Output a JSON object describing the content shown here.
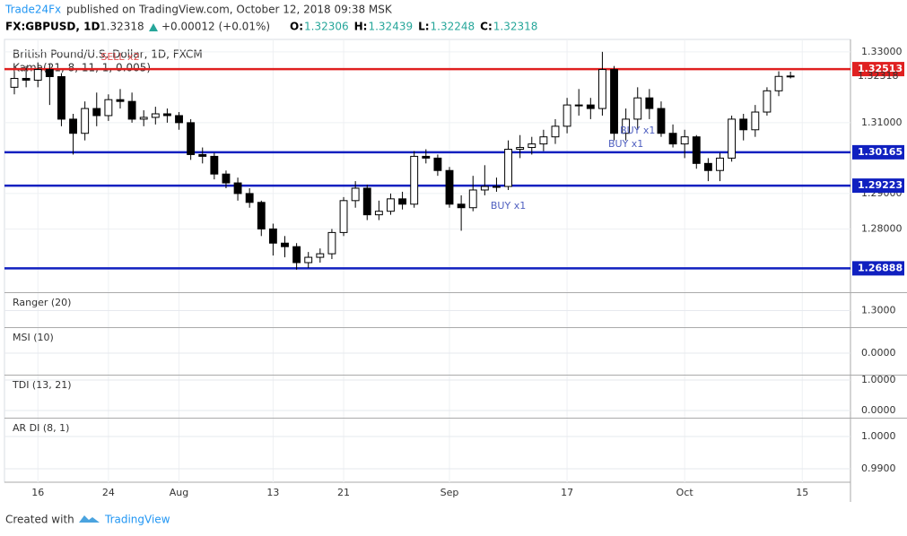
{
  "header": {
    "author": "Trade24Fx",
    "published": "published on TradingView.com, October 12, 2018 09:38 MSK",
    "symbol": "FX:GBPUSD, 1D",
    "last": "1.32318",
    "change": "+0.00012 (+0.01%)",
    "ohlc": [
      {
        "label": "O:",
        "value": "1.32306"
      },
      {
        "label": "H:",
        "value": "1.32439"
      },
      {
        "label": "L:",
        "value": "1.32248"
      },
      {
        "label": "C:",
        "value": "1.32318"
      }
    ]
  },
  "footer": {
    "created": "Created with",
    "brand": "TradingView"
  },
  "chart_data": {
    "type": "candlestick",
    "title": "British Pound/U.S. Dollar, 1D, FXCM",
    "indicator": "Kama(21, 8, 11, 1, 0.005)",
    "up_color": "#ffffff",
    "down_color": "#000000",
    "xlim": [
      -0.84,
      71.1
    ],
    "xticks": [
      {
        "value": 2,
        "label": "16"
      },
      {
        "value": 8,
        "label": "24"
      },
      {
        "value": 14,
        "label": "Aug"
      },
      {
        "value": 22,
        "label": "13"
      },
      {
        "value": 28,
        "label": "21"
      },
      {
        "value": 37,
        "label": "Sep"
      },
      {
        "value": 47,
        "label": "17"
      },
      {
        "value": 57,
        "label": "Oct"
      },
      {
        "value": 67,
        "label": "15"
      }
    ],
    "ylim": [
      1.2624,
      1.3335
    ],
    "yticks": [
      {
        "value": 1.28,
        "label": "1.28000"
      },
      {
        "value": 1.29,
        "label": "1.29000"
      },
      {
        "value": 1.31,
        "label": "1.31000"
      },
      {
        "value": 1.33,
        "label": "1.33000"
      }
    ],
    "last_price": 1.32318,
    "levels": [
      {
        "value": 1.32513,
        "color": "#e02020"
      },
      {
        "value": 1.30165,
        "color": "#1020c0"
      },
      {
        "value": 1.29223,
        "color": "#1020c0"
      },
      {
        "value": 1.26888,
        "color": "#1020c0"
      }
    ],
    "annotations": [
      {
        "text": "SELL x2",
        "x": 9,
        "y": 1.3285,
        "color": "#e05050"
      },
      {
        "text": "BUY x1",
        "x": 42,
        "y": 1.2865,
        "color": "#5060c0"
      },
      {
        "text": "BUY x1",
        "x": 53,
        "y": 1.3077,
        "color": "#5060c0"
      },
      {
        "text": "BUY x1",
        "x": 52,
        "y": 1.3039,
        "color": "#5060c0"
      }
    ],
    "open": [
      1.32,
      1.3225,
      1.322,
      1.325,
      1.323,
      1.311,
      1.307,
      1.314,
      1.312,
      1.3165,
      1.316,
      1.311,
      1.3115,
      1.3125,
      1.312,
      1.31,
      1.301,
      1.3005,
      1.2955,
      1.293,
      1.29,
      1.2875,
      1.28,
      1.276,
      1.275,
      1.2705,
      1.272,
      1.273,
      1.279,
      1.288,
      1.2915,
      1.284,
      1.285,
      1.2885,
      1.287,
      1.3005,
      1.3,
      1.2965,
      1.287,
      1.286,
      1.291,
      1.292,
      1.292,
      1.3025,
      1.303,
      1.304,
      1.306,
      1.309,
      1.315,
      1.315,
      1.314,
      1.325,
      1.307,
      1.311,
      1.317,
      1.314,
      1.307,
      1.304,
      1.306,
      1.2985,
      1.2965,
      1.3,
      1.311,
      1.308,
      1.313,
      1.319,
      1.32306
    ],
    "high": [
      1.3245,
      1.326,
      1.327,
      1.3265,
      1.324,
      1.3125,
      1.316,
      1.3185,
      1.318,
      1.3195,
      1.3185,
      1.3135,
      1.3145,
      1.314,
      1.313,
      1.311,
      1.303,
      1.3015,
      1.2965,
      1.2945,
      1.2915,
      1.288,
      1.2815,
      1.278,
      1.276,
      1.2735,
      1.2745,
      1.28,
      1.289,
      1.2935,
      1.2925,
      1.288,
      1.29,
      1.2905,
      1.302,
      1.3025,
      1.301,
      1.2975,
      1.2895,
      1.295,
      1.298,
      1.2945,
      1.305,
      1.3065,
      1.306,
      1.308,
      1.311,
      1.317,
      1.3195,
      1.317,
      1.33,
      1.326,
      1.314,
      1.32,
      1.3195,
      1.316,
      1.3095,
      1.308,
      1.3065,
      1.3,
      1.3015,
      1.312,
      1.3125,
      1.315,
      1.32,
      1.3245,
      1.32439
    ],
    "low": [
      1.318,
      1.32,
      1.32,
      1.315,
      1.309,
      1.301,
      1.305,
      1.309,
      1.3105,
      1.314,
      1.31,
      1.309,
      1.3095,
      1.31,
      1.308,
      1.2995,
      1.2985,
      1.294,
      1.2915,
      1.288,
      1.286,
      1.278,
      1.2725,
      1.272,
      1.2685,
      1.269,
      1.2705,
      1.2715,
      1.278,
      1.286,
      1.2825,
      1.2825,
      1.284,
      1.2855,
      1.286,
      1.2985,
      1.295,
      1.286,
      1.2795,
      1.285,
      1.2895,
      1.2905,
      1.291,
      1.3,
      1.301,
      1.302,
      1.304,
      1.307,
      1.312,
      1.311,
      1.312,
      1.305,
      1.305,
      1.308,
      1.311,
      1.306,
      1.303,
      1.3,
      1.297,
      1.2935,
      1.2935,
      1.299,
      1.305,
      1.306,
      1.312,
      1.3175,
      1.32248
    ],
    "close": [
      1.3225,
      1.322,
      1.325,
      1.323,
      1.311,
      1.307,
      1.314,
      1.312,
      1.3165,
      1.316,
      1.311,
      1.3115,
      1.3125,
      1.312,
      1.31,
      1.301,
      1.3005,
      1.2955,
      1.293,
      1.29,
      1.2875,
      1.28,
      1.276,
      1.275,
      1.2705,
      1.272,
      1.273,
      1.279,
      1.288,
      1.2915,
      1.284,
      1.285,
      1.2885,
      1.287,
      1.3005,
      1.3,
      1.2965,
      1.287,
      1.286,
      1.291,
      1.292,
      1.292,
      1.3025,
      1.303,
      1.304,
      1.306,
      1.309,
      1.315,
      1.315,
      1.314,
      1.325,
      1.307,
      1.311,
      1.317,
      1.314,
      1.307,
      1.304,
      1.306,
      1.2985,
      1.2965,
      1.3,
      1.311,
      1.308,
      1.313,
      1.319,
      1.32306,
      1.32318
    ],
    "panels": [
      {
        "title": "Ranger (20)",
        "ylim": [
          1.29,
          1.31
        ],
        "yticks": [
          {
            "value": 1.3,
            "label": "1.3000"
          }
        ]
      },
      {
        "title": "MSI (10)",
        "ylim": [
          -0.46,
          0.54
        ],
        "yticks": [
          {
            "value": 0,
            "label": "0.0000"
          }
        ]
      },
      {
        "title": "TDI (13, 21)",
        "ylim": [
          -0.206,
          1.118
        ],
        "yticks": [
          {
            "value": 1,
            "label": "1.0000"
          },
          {
            "value": 0,
            "label": "0.0000"
          }
        ]
      },
      {
        "title": "AR DI (8, 1)",
        "ylim": [
          0.98583,
          1.00528
        ],
        "yticks": [
          {
            "value": 1,
            "label": "1.0000"
          },
          {
            "value": 0.99,
            "label": "0.9900"
          }
        ]
      }
    ]
  }
}
